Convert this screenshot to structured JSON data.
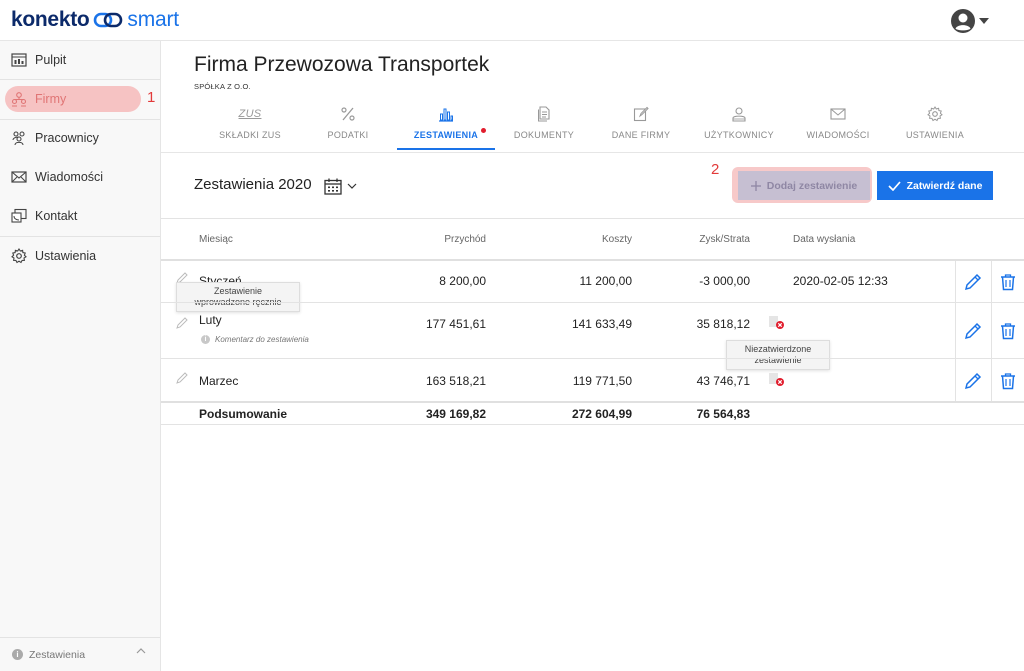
{
  "brand": {
    "word1": "konekto",
    "word2": "smart"
  },
  "sidebar": {
    "items": [
      {
        "label": "Pulpit",
        "icon": "dashboard-icon"
      },
      {
        "label": "Firmy",
        "icon": "companies-icon",
        "active": true
      },
      {
        "label": "Pracownicy",
        "icon": "employees-icon"
      },
      {
        "label": "Wiadomości",
        "icon": "envelope-icon"
      },
      {
        "label": "Kontakt",
        "icon": "contact-icon"
      },
      {
        "label": "Ustawienia",
        "icon": "gear-icon"
      }
    ],
    "annotation": "1",
    "footer": "Zestawienia"
  },
  "company": {
    "name": "Firma Przewozowa Transportek",
    "type": "SPÓŁKA Z O.O."
  },
  "tabs": [
    {
      "label": "SKŁADKI ZUS",
      "icon": "zus-icon",
      "icon_text": "ZUS"
    },
    {
      "label": "PODATKI",
      "icon": "percent-icon"
    },
    {
      "label": "ZESTAWIENIA",
      "icon": "bar-chart-icon",
      "active": true
    },
    {
      "label": "DOKUMENTY",
      "icon": "documents-icon"
    },
    {
      "label": "DANE FIRMY",
      "icon": "edit-icon"
    },
    {
      "label": "UŻYTKOWNICY",
      "icon": "user-icon"
    },
    {
      "label": "WIADOMOŚCI",
      "icon": "envelope-icon"
    },
    {
      "label": "USTAWIENIA",
      "icon": "gear-icon"
    }
  ],
  "section": {
    "title": "Zestawienia 2020",
    "annotation": "2",
    "add_label": "Dodaj zestawienie",
    "confirm_label": "Zatwierdź dane"
  },
  "table": {
    "headers": {
      "month": "Miesiąc",
      "income": "Przychód",
      "costs": "Koszty",
      "profit": "Zysk/Strata",
      "sent": "Data wysłania"
    },
    "rows": [
      {
        "month": "Styczeń",
        "income": "8 200,00",
        "costs": "11 200,00",
        "profit": "-3 000,00",
        "sent": "2020-02-05 12:33"
      },
      {
        "month": "Luty",
        "income": "177 451,61",
        "costs": "141 633,49",
        "profit": "35 818,12",
        "sent": "",
        "comment": "Komentarz do zestawienia"
      },
      {
        "month": "Marzec",
        "income": "163 518,21",
        "costs": "119 771,50",
        "profit": "43 746,71",
        "sent": ""
      }
    ],
    "summary": {
      "label": "Podsumowanie",
      "income": "349 169,82",
      "costs": "272 604,99",
      "profit": "76 564,83"
    }
  },
  "tooltips": {
    "manual_line1": "Zestawienie",
    "manual_line2": "wprowadzone ręcznie",
    "unconfirmed_line1": "Niezatwierdzone",
    "unconfirmed_line2": "zestawienie"
  },
  "colors": {
    "accent": "#1a73e8",
    "highlight": "#f6c3c3",
    "error": "#e11d2d"
  }
}
